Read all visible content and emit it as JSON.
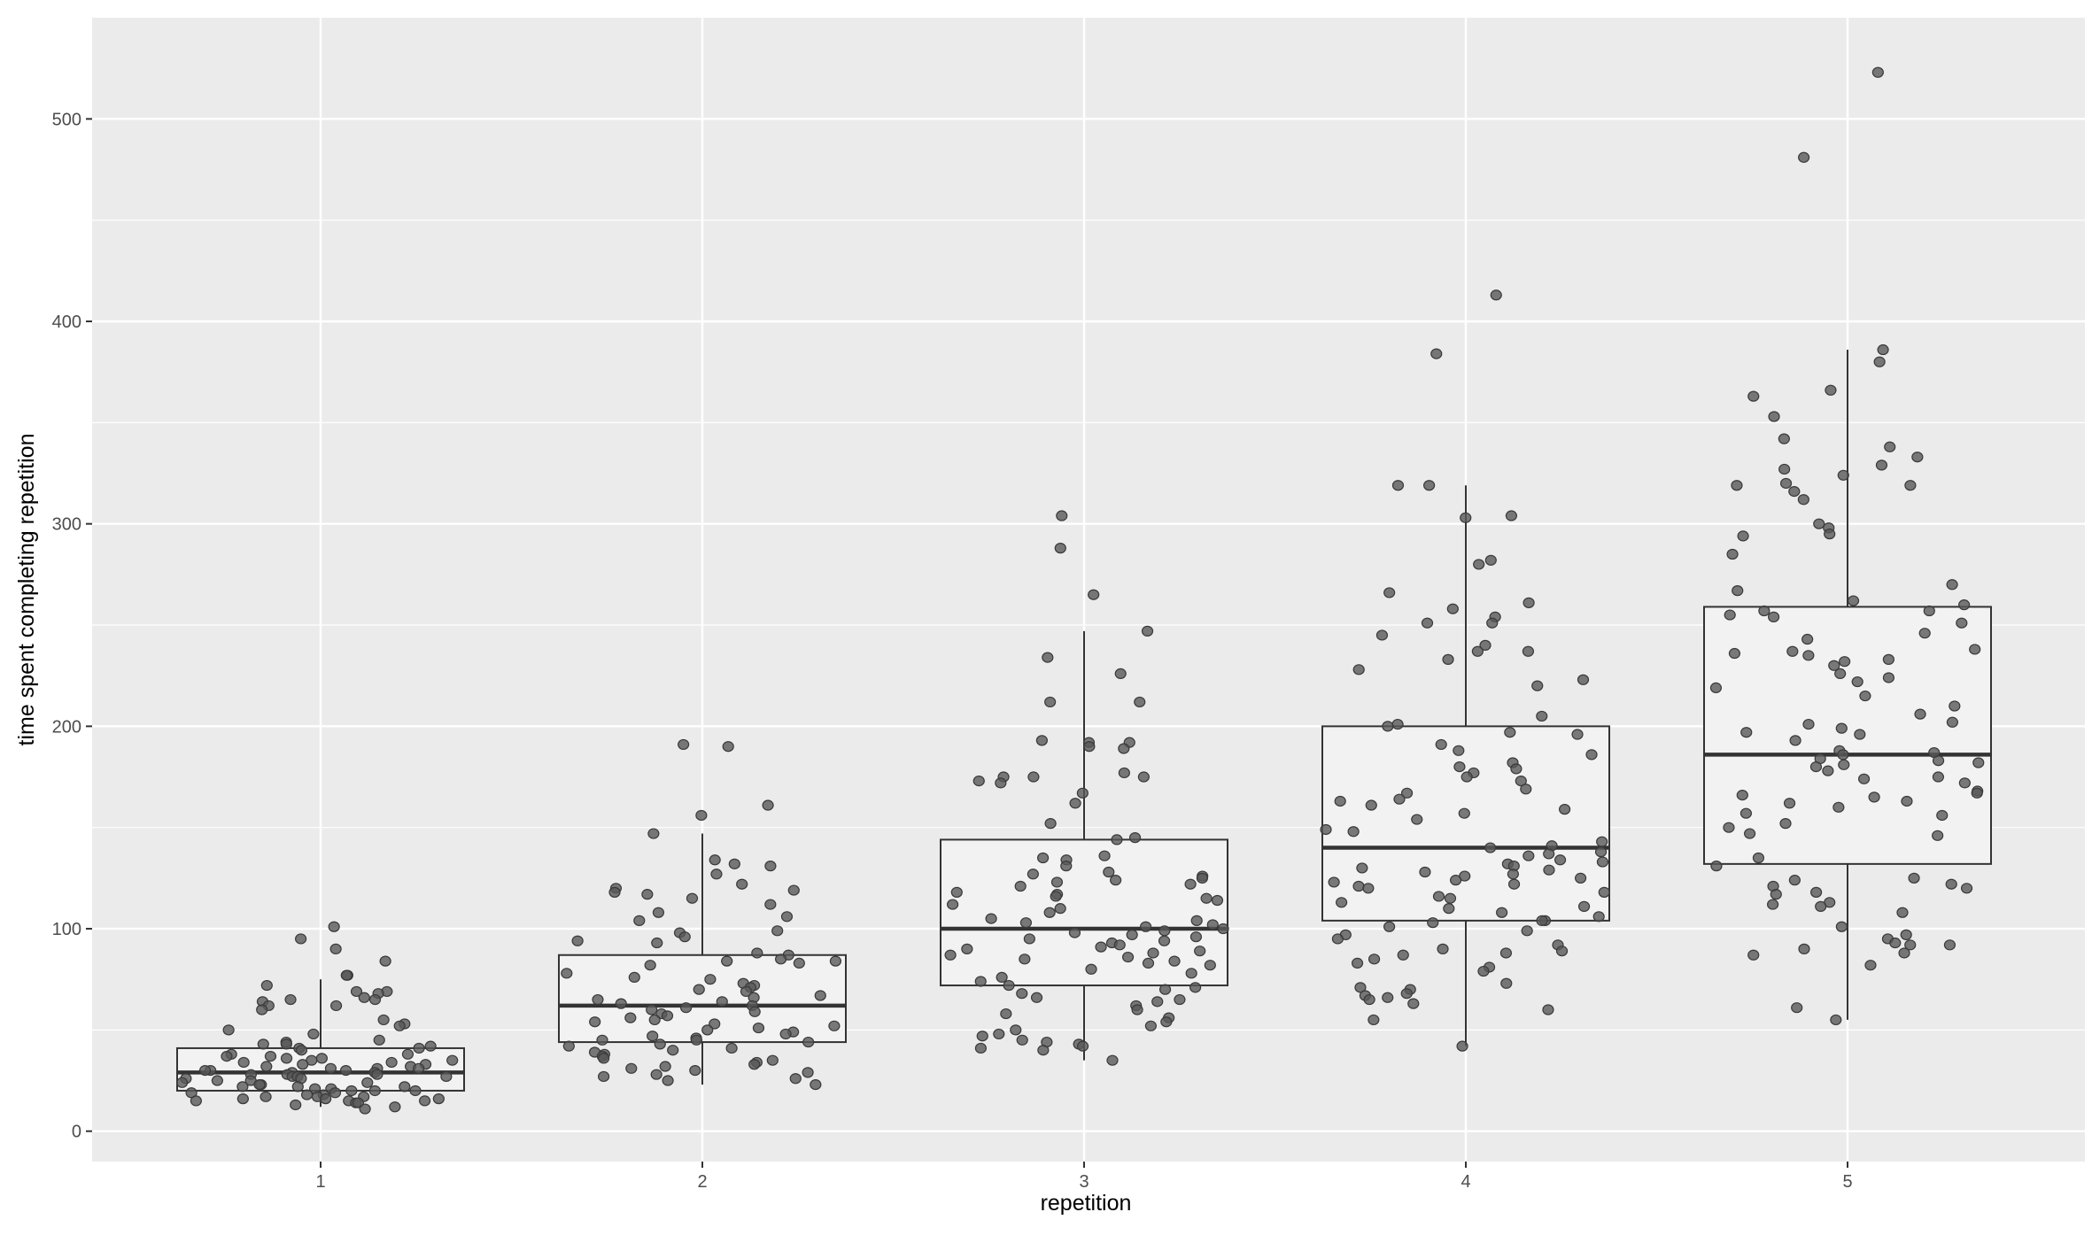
{
  "chart_data": {
    "type": "box",
    "title": "",
    "xlabel": "repetition",
    "ylabel": "time spent completing repetition",
    "categories": [
      "1",
      "2",
      "3",
      "4",
      "5"
    ],
    "ylim": [
      -15,
      550
    ],
    "yticks": [
      0,
      100,
      200,
      300,
      400,
      500
    ],
    "ytick_labels": [
      "0",
      "100",
      "200",
      "300",
      "400",
      "500"
    ],
    "grid": true,
    "colors": {
      "panel_bg": "#ebebeb",
      "grid": "#ffffff",
      "box_fill": "#f2f2f2",
      "box_stroke": "#333333",
      "point_fill": "#595959",
      "point_stroke": "#3a3a3a"
    },
    "boxes": [
      {
        "category": "1",
        "whisker_low": 12,
        "q1": 20,
        "median": 29,
        "q3": 41,
        "whisker_high": 75
      },
      {
        "category": "2",
        "whisker_low": 23,
        "q1": 44,
        "median": 62,
        "q3": 87,
        "whisker_high": 147
      },
      {
        "category": "3",
        "whisker_low": 35,
        "q1": 72,
        "median": 100,
        "q3": 144,
        "whisker_high": 247
      },
      {
        "category": "4",
        "whisker_low": 42,
        "q1": 104,
        "median": 140,
        "q3": 200,
        "whisker_high": 319
      },
      {
        "category": "5",
        "whisker_low": 55,
        "q1": 132,
        "median": 186,
        "q3": 259,
        "whisker_high": 386
      }
    ],
    "points": [
      {
        "category": "1",
        "values": [
          101,
          95,
          90,
          84,
          77,
          77,
          72,
          69,
          69,
          68,
          66,
          65,
          65,
          64,
          62,
          62,
          60,
          55,
          53,
          52,
          50,
          48,
          45,
          44,
          43,
          43,
          42,
          41,
          41,
          40,
          38,
          38,
          37,
          37,
          36,
          36,
          35,
          35,
          34,
          34,
          33,
          33,
          32,
          32,
          31,
          31,
          31,
          30,
          30,
          30,
          29,
          29,
          28,
          28,
          28,
          27,
          27,
          27,
          26,
          26,
          25,
          25,
          24,
          24,
          23,
          23,
          22,
          22,
          22,
          21,
          21,
          20,
          20,
          20,
          19,
          19,
          18,
          18,
          17,
          17,
          17,
          16,
          16,
          16,
          15,
          15,
          15,
          14,
          14,
          13,
          12,
          11
        ]
      },
      {
        "category": "2",
        "values": [
          191,
          190,
          161,
          156,
          147,
          134,
          132,
          131,
          127,
          122,
          120,
          119,
          118,
          117,
          115,
          112,
          108,
          106,
          104,
          99,
          98,
          96,
          94,
          93,
          88,
          87,
          85,
          84,
          84,
          83,
          82,
          78,
          76,
          75,
          73,
          72,
          71,
          70,
          69,
          67,
          66,
          65,
          64,
          63,
          62,
          61,
          60,
          59,
          58,
          57,
          56,
          55,
          54,
          53,
          52,
          51,
          50,
          49,
          48,
          47,
          46,
          45,
          45,
          44,
          43,
          42,
          41,
          40,
          39,
          38,
          37,
          36,
          35,
          34,
          33,
          32,
          31,
          30,
          29,
          28,
          27,
          26,
          25,
          23
        ]
      },
      {
        "category": "3",
        "values": [
          304,
          288,
          265,
          247,
          234,
          226,
          212,
          212,
          193,
          192,
          192,
          190,
          189,
          177,
          175,
          175,
          175,
          173,
          172,
          167,
          162,
          152,
          145,
          144,
          136,
          135,
          134,
          131,
          128,
          127,
          126,
          125,
          124,
          123,
          122,
          121,
          118,
          117,
          116,
          115,
          114,
          112,
          110,
          108,
          105,
          104,
          103,
          102,
          101,
          100,
          99,
          98,
          97,
          96,
          95,
          94,
          93,
          92,
          91,
          90,
          89,
          88,
          87,
          86,
          85,
          84,
          83,
          82,
          80,
          78,
          76,
          74,
          72,
          71,
          70,
          68,
          66,
          65,
          64,
          62,
          60,
          58,
          56,
          54,
          52,
          50,
          48,
          47,
          45,
          44,
          43,
          42,
          41,
          40,
          35
        ]
      },
      {
        "category": "4",
        "values": [
          413,
          384,
          319,
          319,
          304,
          303,
          282,
          280,
          266,
          261,
          258,
          254,
          251,
          251,
          245,
          240,
          237,
          237,
          233,
          228,
          223,
          220,
          205,
          201,
          200,
          197,
          196,
          191,
          188,
          186,
          182,
          180,
          179,
          177,
          175,
          173,
          169,
          167,
          164,
          163,
          161,
          159,
          157,
          154,
          149,
          148,
          143,
          141,
          140,
          138,
          137,
          136,
          134,
          133,
          132,
          131,
          130,
          129,
          128,
          127,
          126,
          125,
          124,
          123,
          122,
          121,
          120,
          118,
          116,
          115,
          113,
          111,
          110,
          108,
          106,
          104,
          104,
          103,
          101,
          99,
          97,
          95,
          92,
          90,
          89,
          88,
          87,
          85,
          83,
          81,
          79,
          73,
          71,
          70,
          68,
          67,
          66,
          65,
          63,
          60,
          55,
          42
        ]
      },
      {
        "category": "5",
        "values": [
          523,
          481,
          386,
          380,
          366,
          363,
          353,
          342,
          338,
          333,
          329,
          327,
          324,
          320,
          319,
          319,
          316,
          312,
          300,
          298,
          295,
          294,
          285,
          270,
          267,
          262,
          260,
          257,
          257,
          255,
          254,
          251,
          246,
          243,
          238,
          237,
          236,
          235,
          233,
          232,
          230,
          226,
          224,
          222,
          219,
          215,
          210,
          206,
          202,
          201,
          199,
          197,
          196,
          193,
          188,
          187,
          186,
          184,
          183,
          182,
          181,
          180,
          178,
          175,
          174,
          172,
          168,
          167,
          166,
          165,
          163,
          162,
          160,
          157,
          156,
          152,
          150,
          147,
          146,
          135,
          131,
          125,
          124,
          122,
          121,
          120,
          118,
          117,
          113,
          112,
          111,
          108,
          101,
          97,
          95,
          93,
          92,
          92,
          90,
          88,
          87,
          82,
          61,
          55
        ]
      }
    ]
  },
  "axes": {
    "x_title": "repetition",
    "y_title": "time spent completing repetition"
  }
}
